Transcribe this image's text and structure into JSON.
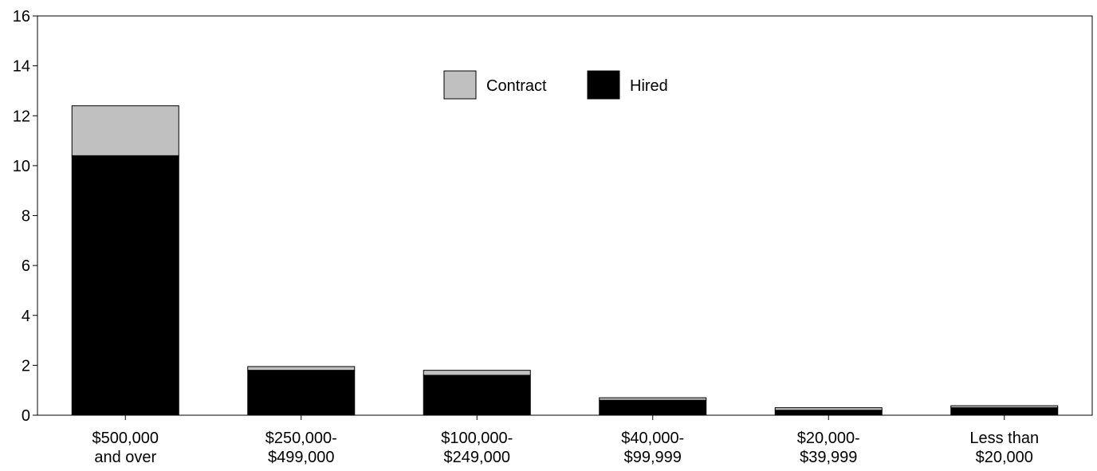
{
  "chart_data": {
    "type": "bar",
    "stacked": true,
    "categories": [
      [
        "$500,000",
        "and over"
      ],
      [
        "$250,000-",
        "$499,000"
      ],
      [
        "$100,000-",
        "$249,000"
      ],
      [
        "$40,000-",
        "$99,999"
      ],
      [
        "$20,000-",
        "$39,999"
      ],
      [
        "Less than",
        "$20,000"
      ]
    ],
    "series": [
      {
        "name": "Hired",
        "color": "#000000",
        "values": [
          10.4,
          1.8,
          1.6,
          0.6,
          0.2,
          0.3
        ]
      },
      {
        "name": "Contract",
        "color": "#c0c0c0",
        "values": [
          2.0,
          0.15,
          0.2,
          0.1,
          0.1,
          0.08
        ]
      }
    ],
    "ylim": [
      0,
      16
    ],
    "yticks": [
      0,
      2,
      4,
      6,
      8,
      10,
      12,
      14,
      16
    ],
    "legend": {
      "position": "top-center",
      "entries": [
        {
          "label": "Contract",
          "color": "#c0c0c0"
        },
        {
          "label": "Hired",
          "color": "#000000"
        }
      ]
    },
    "grid": false,
    "title": "",
    "xlabel": "",
    "ylabel": ""
  }
}
